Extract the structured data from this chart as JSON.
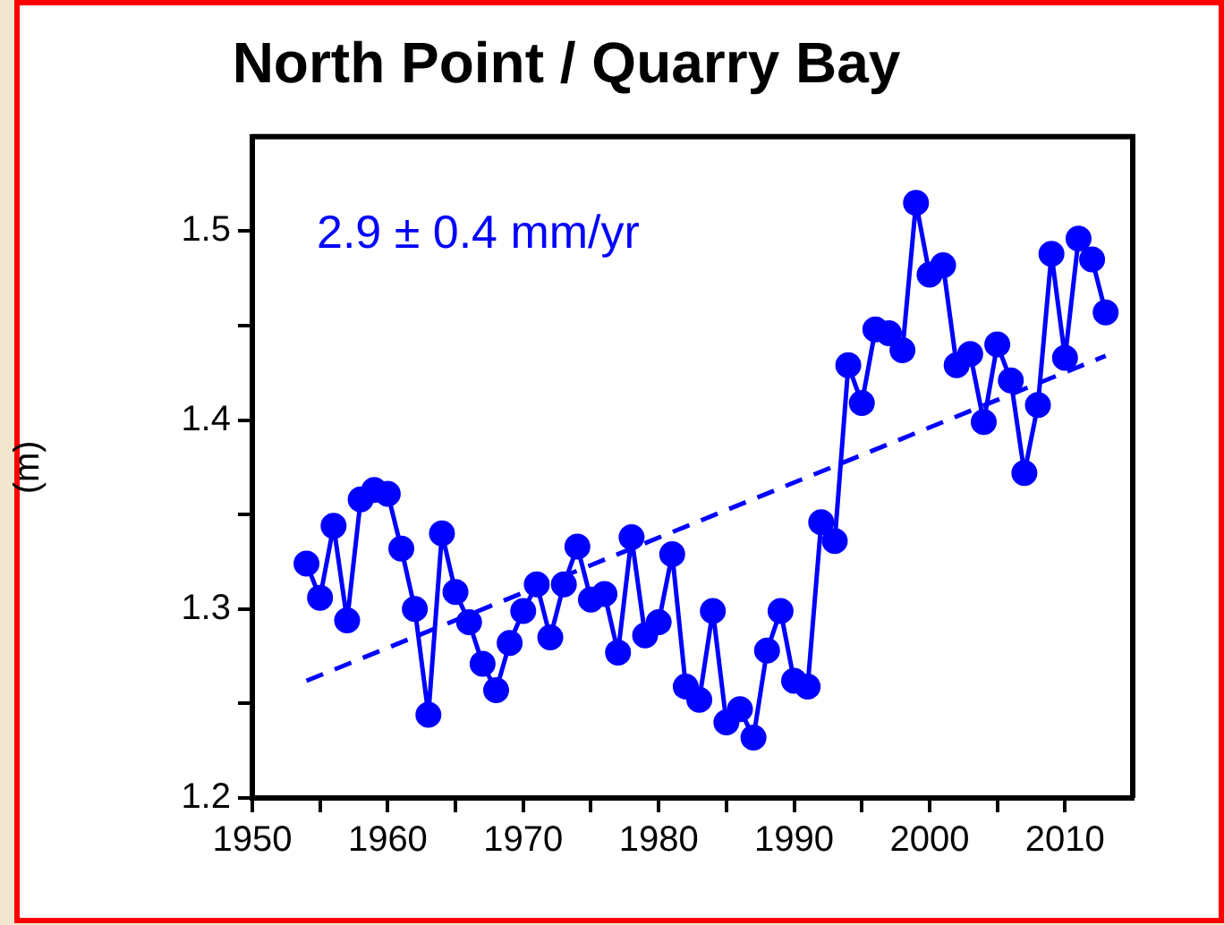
{
  "chart_data": {
    "type": "line",
    "title": "North Point / Quarry Bay",
    "ylabel": "(m)",
    "annotations": [
      "2.9 ± 0.4 mm/yr"
    ],
    "x": [
      1954,
      1955,
      1956,
      1957,
      1958,
      1959,
      1960,
      1961,
      1962,
      1963,
      1964,
      1965,
      1966,
      1967,
      1968,
      1969,
      1970,
      1971,
      1972,
      1973,
      1974,
      1975,
      1976,
      1977,
      1978,
      1979,
      1980,
      1981,
      1982,
      1983,
      1984,
      1985,
      1986,
      1987,
      1988,
      1989,
      1990,
      1991,
      1992,
      1993,
      1994,
      1995,
      1996,
      1997,
      1998,
      1999,
      2000,
      2001,
      2002,
      2003,
      2004,
      2005,
      2006,
      2007,
      2008,
      2009,
      2010,
      2011,
      2012,
      2013
    ],
    "series": [
      {
        "color": "#0000ff",
        "marker": "circle",
        "line_style": "solid",
        "values": [
          1.324,
          1.306,
          1.344,
          1.294,
          1.358,
          1.363,
          1.361,
          1.332,
          1.3,
          1.244,
          1.34,
          1.309,
          1.293,
          1.271,
          1.257,
          1.282,
          1.299,
          1.313,
          1.285,
          1.313,
          1.333,
          1.305,
          1.308,
          1.277,
          1.338,
          1.286,
          1.293,
          1.329,
          1.259,
          1.252,
          1.299,
          1.24,
          1.247,
          1.232,
          1.278,
          1.299,
          1.262,
          1.259,
          1.346,
          1.336,
          1.429,
          1.409,
          1.448,
          1.446,
          1.437,
          1.515,
          1.477,
          1.482,
          1.429,
          1.435,
          1.399,
          1.44,
          1.421,
          1.372,
          1.408,
          1.488,
          1.433,
          1.496,
          1.485,
          1.457
        ]
      },
      {
        "type": "line",
        "color": "#0000ff",
        "marker": "none",
        "line_style": "dashed",
        "x": [
          1954,
          2013
        ],
        "values": [
          1.262,
          1.434
        ]
      }
    ],
    "xlim": [
      1950,
      2015
    ],
    "xticks": [
      1950,
      {
        "value": 1955,
        "label": null
      },
      1960,
      {
        "value": 1965,
        "label": null
      },
      1970,
      {
        "value": 1975,
        "label": null
      },
      1980,
      {
        "value": 1985,
        "label": null
      },
      1990,
      {
        "value": 1995,
        "label": null
      },
      2000,
      {
        "value": 2005,
        "label": null
      },
      2010
    ],
    "ylim": [
      1.2,
      1.55
    ],
    "yticks": [
      1.2,
      {
        "value": 1.25,
        "label": null
      },
      1.3,
      {
        "value": 1.35,
        "label": null
      },
      1.4,
      {
        "value": 1.45,
        "label": null
      },
      1.5
    ],
    "grid": false,
    "legend": false
  }
}
